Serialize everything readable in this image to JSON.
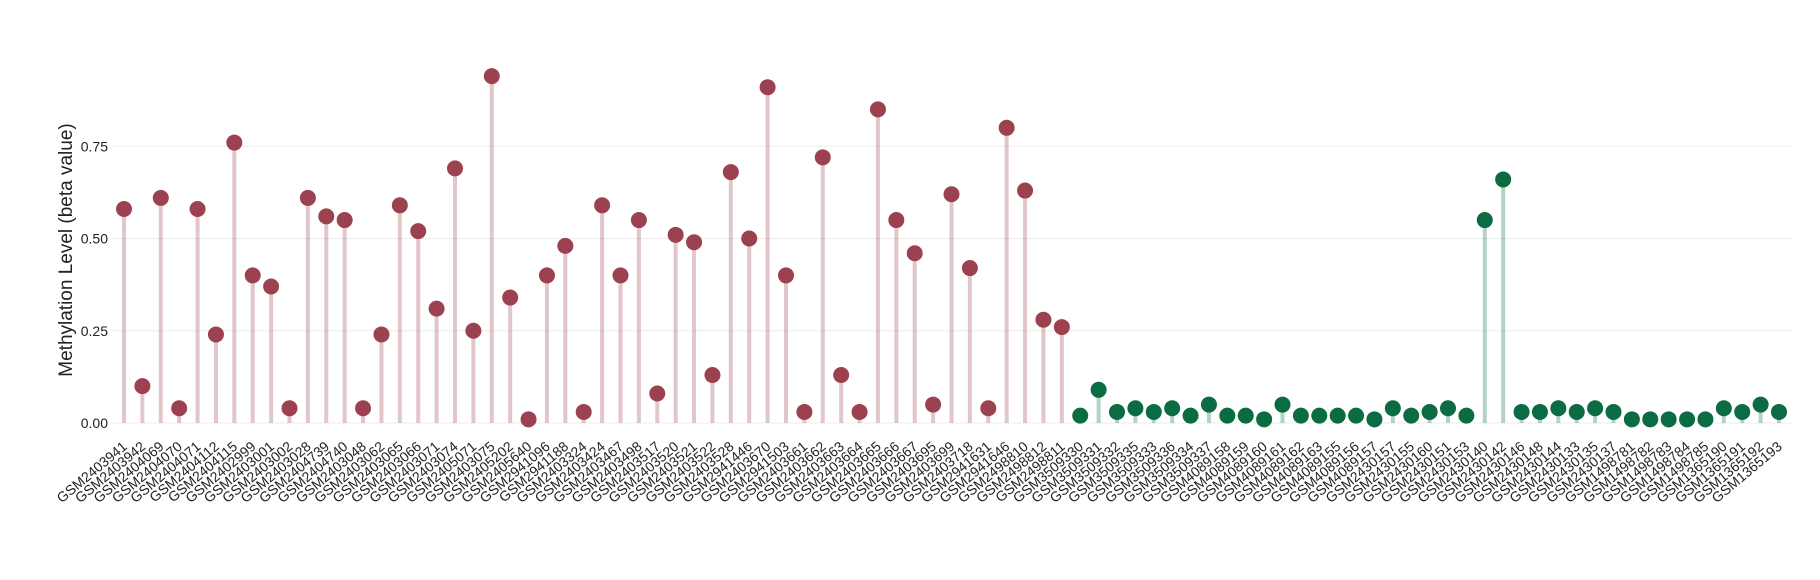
{
  "chart_data": {
    "type": "lollipop",
    "y_label": "Methylation Level (beta value)",
    "categories": [
      "GSM2403941",
      "GSM2403942",
      "GSM2404069",
      "GSM2404070",
      "GSM2404071",
      "GSM2404112",
      "GSM2404115",
      "GSM2402999",
      "GSM2403001",
      "GSM2403002",
      "GSM2403028",
      "GSM2404739",
      "GSM2404740",
      "GSM2403048",
      "GSM2403062",
      "GSM2403065",
      "GSM2403066",
      "GSM2403071",
      "GSM2403074",
      "GSM2405071",
      "GSM2403075",
      "GSM2405202",
      "GSM2405640",
      "GSM2941096",
      "GSM2941188",
      "GSM2403324",
      "GSM2403424",
      "GSM2403467",
      "GSM2403498",
      "GSM2403517",
      "GSM2403520",
      "GSM2403521",
      "GSM2403522",
      "GSM2403528",
      "GSM2941446",
      "GSM2403670",
      "GSM2941503",
      "GSM2403661",
      "GSM2403662",
      "GSM2403663",
      "GSM2403664",
      "GSM2403665",
      "GSM2403666",
      "GSM2403667",
      "GSM2403695",
      "GSM2403699",
      "GSM2403718",
      "GSM2941631",
      "GSM2941646",
      "GSM2498810",
      "GSM2498812",
      "GSM2498811",
      "GSM3509330",
      "GSM3509331",
      "GSM3509332",
      "GSM3509335",
      "GSM3509333",
      "GSM3509336",
      "GSM3509334",
      "GSM3509337",
      "GSM4089158",
      "GSM4089159",
      "GSM4089160",
      "GSM4089161",
      "GSM4089162",
      "GSM4089163",
      "GSM4089155",
      "GSM4089156",
      "GSM4089157",
      "GSM2430157",
      "GSM2430155",
      "GSM2430160",
      "GSM2430151",
      "GSM2430153",
      "GSM2430140",
      "GSM2430142",
      "GSM2430146",
      "GSM2430148",
      "GSM2430144",
      "GSM2430133",
      "GSM2430135",
      "GSM2430137",
      "GSM1498781",
      "GSM1498782",
      "GSM1498783",
      "GSM1498784",
      "GSM1498785",
      "GSM1365190",
      "GSM1365191",
      "GSM1365192",
      "GSM1365193"
    ],
    "values": [
      0.58,
      0.1,
      0.61,
      0.04,
      0.58,
      0.24,
      0.76,
      0.4,
      0.37,
      0.04,
      0.61,
      0.56,
      0.55,
      0.04,
      0.24,
      0.59,
      0.52,
      0.31,
      0.69,
      0.25,
      0.94,
      0.34,
      0.01,
      0.4,
      0.48,
      0.03,
      0.59,
      0.4,
      0.55,
      0.08,
      0.51,
      0.49,
      0.13,
      0.68,
      0.5,
      0.91,
      0.4,
      0.03,
      0.72,
      0.13,
      0.03,
      0.85,
      0.55,
      0.46,
      0.05,
      0.62,
      0.42,
      0.04,
      0.8,
      0.63,
      0.28,
      0.26,
      0.02,
      0.09,
      0.03,
      0.04,
      0.03,
      0.04,
      0.02,
      0.05,
      0.02,
      0.02,
      0.01,
      0.05,
      0.02,
      0.02,
      0.02,
      0.02,
      0.01,
      0.04,
      0.02,
      0.03,
      0.04,
      0.02,
      0.55,
      0.66,
      0.03,
      0.03,
      0.04,
      0.03,
      0.04,
      0.03,
      0.01,
      0.01,
      0.01,
      0.01,
      0.01,
      0.04,
      0.03,
      0.05,
      0.03
    ],
    "colors": [
      "#9b4150",
      "#9b4150",
      "#9b4150",
      "#9b4150",
      "#9b4150",
      "#9b4150",
      "#9b4150",
      "#9b4150",
      "#9b4150",
      "#9b4150",
      "#9b4150",
      "#9b4150",
      "#9b4150",
      "#9b4150",
      "#9b4150",
      "#9b4150",
      "#9b4150",
      "#9b4150",
      "#9b4150",
      "#9b4150",
      "#9b4150",
      "#9b4150",
      "#9b4150",
      "#9b4150",
      "#9b4150",
      "#9b4150",
      "#9b4150",
      "#9b4150",
      "#9b4150",
      "#9b4150",
      "#9b4150",
      "#9b4150",
      "#9b4150",
      "#9b4150",
      "#9b4150",
      "#9b4150",
      "#9b4150",
      "#9b4150",
      "#9b4150",
      "#9b4150",
      "#9b4150",
      "#9b4150",
      "#9b4150",
      "#9b4150",
      "#9b4150",
      "#9b4150",
      "#9b4150",
      "#9b4150",
      "#9b4150",
      "#9b4150",
      "#9b4150",
      "#9b4150",
      "#0b6b43",
      "#0b6b43",
      "#0b6b43",
      "#0b6b43",
      "#0b6b43",
      "#0b6b43",
      "#0b6b43",
      "#0b6b43",
      "#0b6b43",
      "#0b6b43",
      "#0b6b43",
      "#0b6b43",
      "#0b6b43",
      "#0b6b43",
      "#0b6b43",
      "#0b6b43",
      "#0b6b43",
      "#0b6b43",
      "#0b6b43",
      "#0b6b43",
      "#0b6b43",
      "#0b6b43",
      "#0b6b43",
      "#0b6b43",
      "#0b6b43",
      "#0b6b43",
      "#0b6b43",
      "#0b6b43",
      "#0b6b43",
      "#0b6b43",
      "#0b6b43",
      "#0b6b43",
      "#0b6b43",
      "#0b6b43",
      "#0b6b43",
      "#0b6b43",
      "#0b6b43",
      "#0b6b43",
      "#0b6b43"
    ],
    "ylim": [
      -0.02,
      1.0
    ],
    "yticks": [
      {
        "value": 0,
        "label": "0.00"
      },
      0.25,
      {
        "value": 0.5,
        "label": "0.50"
      },
      0.75
    ],
    "grid": true
  }
}
